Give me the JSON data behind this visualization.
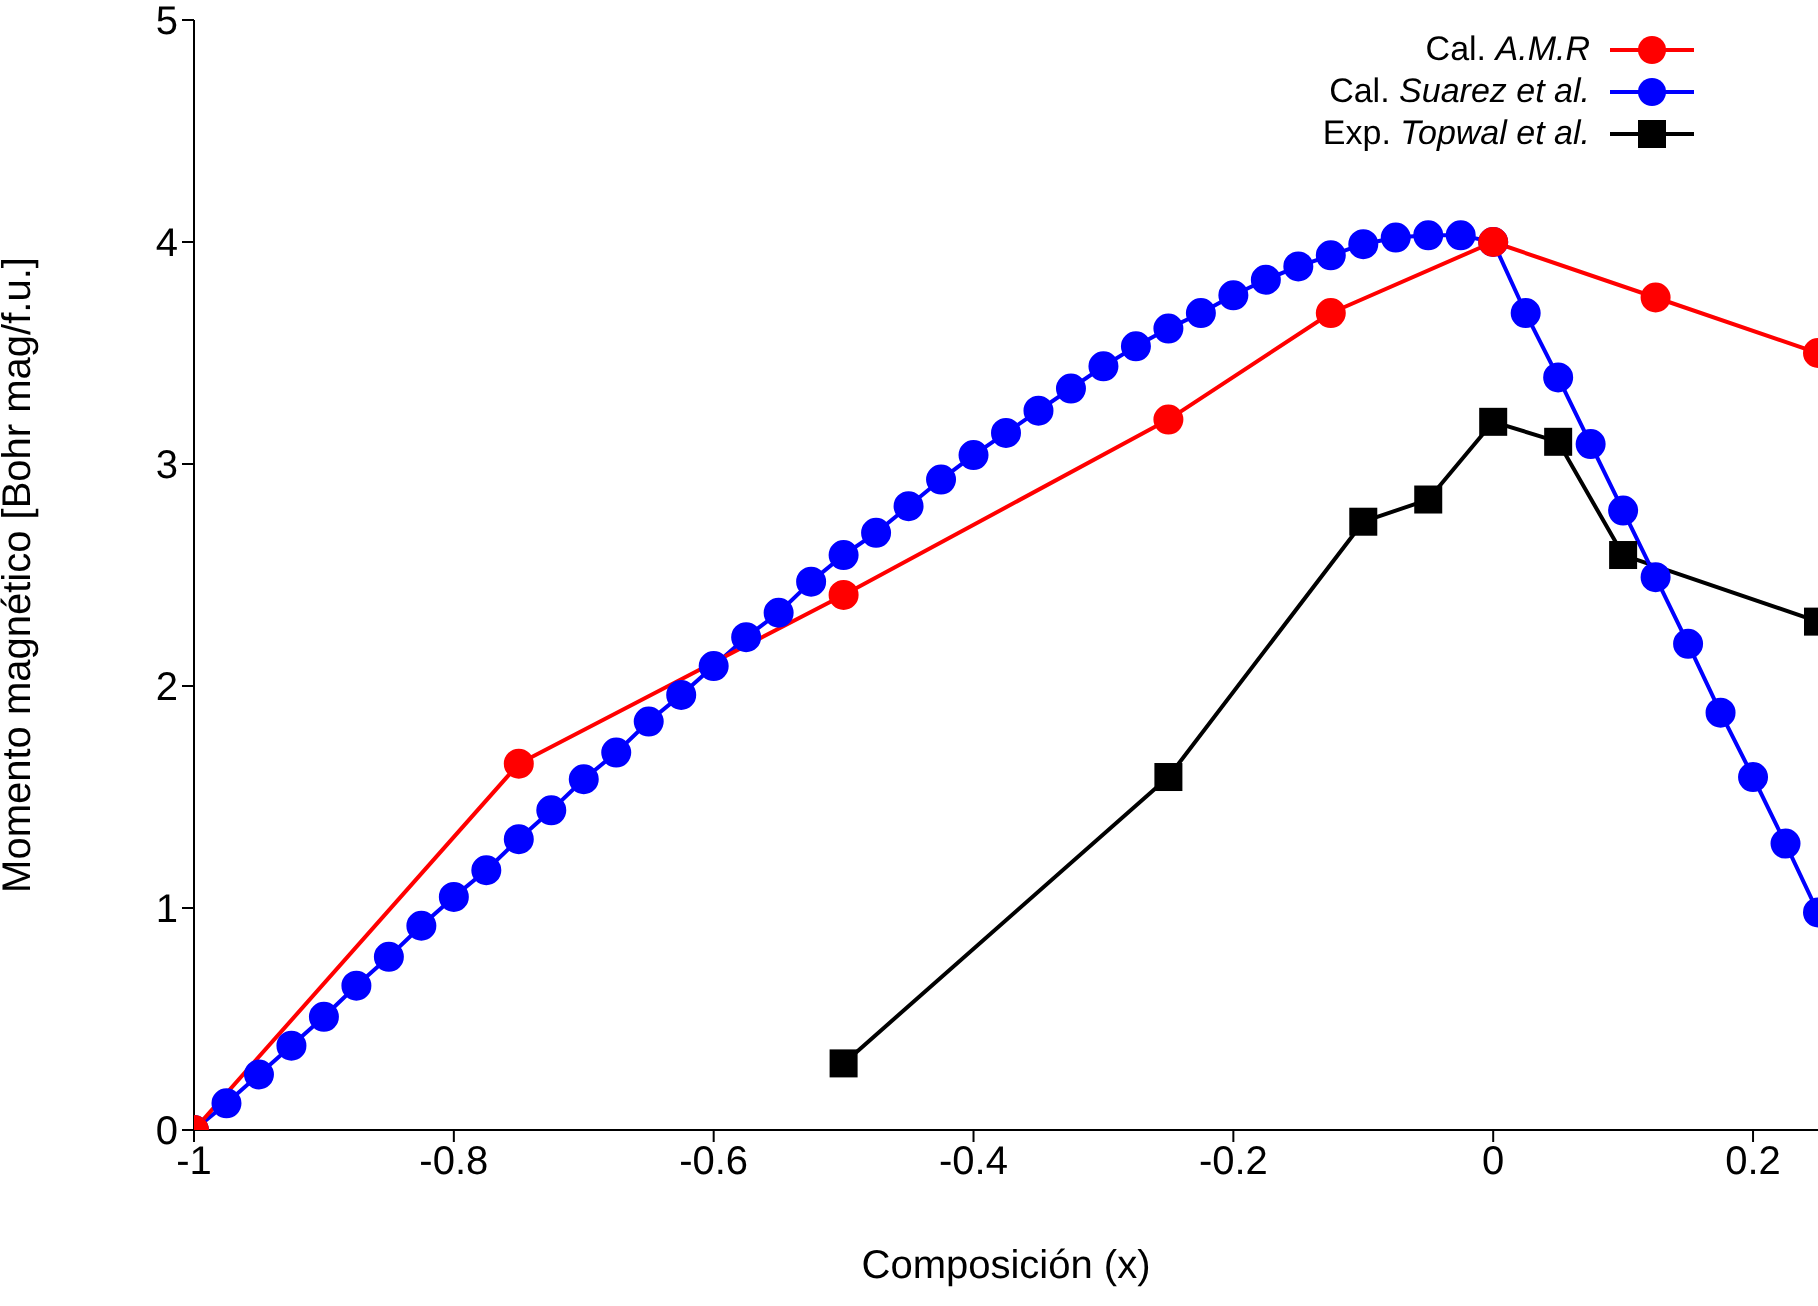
{
  "chart_data": {
    "type": "line",
    "xlabel": "Composición (x)",
    "ylabel": "Momento magnético [Bohr mag/f.u.]",
    "xlim": [
      -1,
      0.25
    ],
    "xticks": [
      -1,
      -0.8,
      -0.6,
      -0.4,
      -0.2,
      0,
      0.2
    ],
    "ylim": [
      0,
      5
    ],
    "yticks": [
      0,
      1,
      2,
      3,
      4,
      5
    ],
    "grid": false,
    "legend": "top right",
    "series": [
      {
        "name": "Cal. A.M.R",
        "color": "#ff0000",
        "marker": "circle",
        "x": [
          -1,
          -0.75,
          -0.5,
          -0.25,
          -0.125,
          0,
          0.125,
          0.25
        ],
        "values": [
          0,
          1.65,
          2.41,
          3.2,
          3.68,
          4.0,
          3.75,
          3.5
        ]
      },
      {
        "name": "Cal. Suarez et al.",
        "color": "#0000ff",
        "marker": "circle",
        "x": [
          -1,
          -0.975,
          -0.95,
          -0.925,
          -0.9,
          -0.875,
          -0.85,
          -0.825,
          -0.8,
          -0.775,
          -0.75,
          -0.725,
          -0.7,
          -0.675,
          -0.65,
          -0.625,
          -0.6,
          -0.575,
          -0.55,
          -0.525,
          -0.5,
          -0.475,
          -0.45,
          -0.425,
          -0.4,
          -0.375,
          -0.35,
          -0.325,
          -0.3,
          -0.275,
          -0.25,
          -0.225,
          -0.2,
          -0.175,
          -0.15,
          -0.125,
          -0.1,
          -0.075,
          -0.05,
          -0.025,
          0,
          0.025,
          0.05,
          0.075,
          0.1,
          0.125,
          0.15,
          0.175,
          0.2,
          0.225,
          0.25
        ],
        "values": [
          0,
          0.12,
          0.25,
          0.38,
          0.51,
          0.65,
          0.78,
          0.92,
          1.05,
          1.17,
          1.31,
          1.44,
          1.58,
          1.7,
          1.84,
          1.96,
          2.09,
          2.22,
          2.33,
          2.47,
          2.59,
          2.69,
          2.81,
          2.93,
          3.04,
          3.14,
          3.24,
          3.34,
          3.44,
          3.53,
          3.61,
          3.68,
          3.76,
          3.83,
          3.89,
          3.94,
          3.99,
          4.02,
          4.03,
          4.03,
          4.0,
          3.68,
          3.39,
          3.09,
          2.79,
          2.49,
          2.19,
          1.88,
          1.59,
          1.29,
          0.98
        ]
      },
      {
        "name": "Exp. Topwal et al.",
        "color": "#000000",
        "marker": "square",
        "x": [
          -0.5,
          -0.25,
          -0.1,
          -0.05,
          0,
          0.05,
          0.1,
          0.25
        ],
        "values": [
          0.3,
          1.59,
          2.74,
          2.84,
          3.19,
          3.1,
          2.59,
          2.29
        ]
      }
    ]
  }
}
